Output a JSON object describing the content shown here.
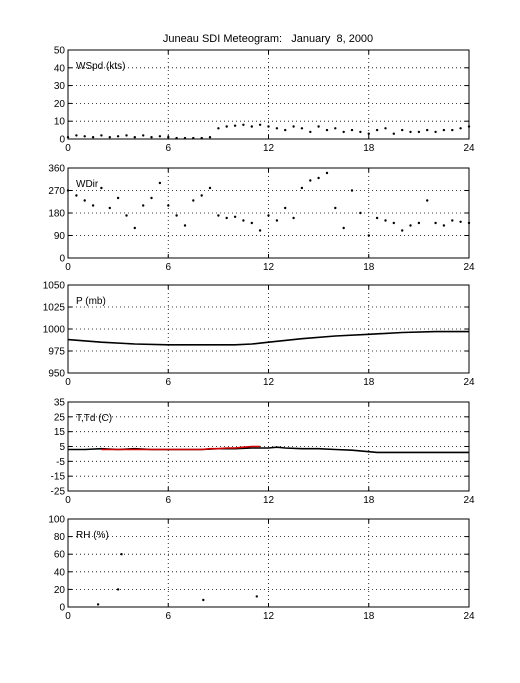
{
  "title": "Juneau SDI Meteogram:   January  8, 2000",
  "chart_data": [
    {
      "type": "scatter",
      "ylabel": "WSpd (kts)",
      "xlim": [
        0,
        24
      ],
      "ylim": [
        0,
        50
      ],
      "xticks": [
        "0",
        "6",
        "12",
        "18",
        "24"
      ],
      "yticks": [
        "0",
        "10",
        "20",
        "30",
        "40",
        "50"
      ],
      "grid": true,
      "series": [
        {
          "color": "#000000",
          "x": [
            0,
            0.5,
            1,
            1.5,
            2,
            2.5,
            3,
            3.5,
            4,
            4.5,
            5,
            5.5,
            6,
            6.5,
            7,
            7.5,
            8,
            8.5,
            9,
            9.5,
            10,
            10.5,
            11,
            11.5,
            12,
            12.5,
            13,
            13.5,
            14,
            14.5,
            15,
            15.5,
            16,
            16.5,
            17,
            17.5,
            18,
            18.5,
            19,
            19.5,
            20,
            20.5,
            21,
            21.5,
            22,
            22.5,
            23,
            23.5,
            24
          ],
          "y": [
            1,
            2,
            1.5,
            1,
            2,
            1,
            1.5,
            2,
            1,
            2,
            1,
            1.5,
            1,
            0.5,
            0.5,
            0.5,
            0.5,
            1,
            6,
            7,
            7.5,
            8,
            7,
            8,
            7,
            6,
            5,
            7,
            6,
            4,
            7,
            5,
            6,
            4,
            5,
            4,
            3,
            5,
            6,
            3,
            5,
            4,
            4,
            5,
            4,
            5,
            5,
            6,
            7
          ]
        }
      ]
    },
    {
      "type": "scatter",
      "ylabel": "WDir",
      "xlim": [
        0,
        24
      ],
      "ylim": [
        0,
        360
      ],
      "xticks": [
        "0",
        "6",
        "12",
        "18",
        "24"
      ],
      "yticks": [
        "0",
        "90",
        "180",
        "270",
        "360"
      ],
      "grid": true,
      "series": [
        {
          "color": "#000000",
          "x": [
            0,
            0.5,
            1,
            1.5,
            2,
            2.5,
            3,
            3.5,
            4,
            4.5,
            5,
            5.5,
            6,
            6.5,
            7,
            7.5,
            8,
            8.5,
            9,
            9.5,
            10,
            10.5,
            11,
            11.5,
            12,
            12.5,
            13,
            13.5,
            14,
            14.5,
            15,
            15.5,
            16,
            16.5,
            17,
            17.5,
            18,
            18.5,
            19,
            19.5,
            20,
            20.5,
            21,
            21.5,
            22,
            22.5,
            23,
            23.5,
            24
          ],
          "y": [
            270,
            250,
            230,
            210,
            280,
            200,
            240,
            170,
            120,
            210,
            240,
            300,
            210,
            170,
            130,
            230,
            250,
            280,
            170,
            160,
            165,
            150,
            140,
            110,
            170,
            150,
            200,
            160,
            280,
            310,
            320,
            340,
            200,
            120,
            270,
            180,
            90,
            160,
            150,
            140,
            110,
            130,
            140,
            230,
            140,
            130,
            150,
            145,
            140
          ]
        }
      ]
    },
    {
      "type": "line",
      "ylabel": "P (mb)",
      "xlim": [
        0,
        24
      ],
      "ylim": [
        950,
        1050
      ],
      "xticks": [
        "0",
        "6",
        "12",
        "18",
        "24"
      ],
      "yticks": [
        "950",
        "975",
        "1000",
        "1025",
        "1050"
      ],
      "grid": true,
      "series": [
        {
          "color": "#000000",
          "x": [
            0,
            2,
            4,
            6,
            8,
            10,
            11,
            12,
            14,
            16,
            18,
            20,
            22,
            24
          ],
          "y": [
            988,
            985,
            983,
            982,
            982,
            982,
            983,
            985,
            989,
            992,
            994,
            996,
            997,
            997
          ]
        }
      ]
    },
    {
      "type": "line",
      "ylabel": "T,Td (C)",
      "xlim": [
        0,
        24
      ],
      "ylim": [
        -25,
        35
      ],
      "xticks": [
        "0",
        "6",
        "12",
        "18",
        "24"
      ],
      "yticks": [
        "-25",
        "-15",
        "-5",
        "5",
        "15",
        "25",
        "35"
      ],
      "grid": true,
      "series": [
        {
          "color": "#000000",
          "x": [
            0,
            1,
            2,
            3,
            4,
            5,
            6,
            7,
            8,
            9,
            10,
            11,
            12,
            12.5,
            13,
            14,
            15,
            16,
            17,
            18,
            18.5,
            19,
            20,
            21,
            22,
            23,
            24
          ],
          "y": [
            3,
            3,
            3.5,
            3,
            3.5,
            3,
            3,
            3,
            3,
            3.5,
            3.5,
            4,
            4,
            4.5,
            4,
            3.5,
            3.5,
            3,
            2.5,
            1.5,
            1,
            1,
            1,
            1,
            1,
            1,
            1
          ]
        },
        {
          "color": "#d00000",
          "x": [
            2,
            8,
            8.5,
            9,
            9.5,
            10,
            10.5,
            11,
            11.5
          ],
          "y": [
            3,
            3,
            3.5,
            3.5,
            4,
            4,
            4.5,
            5,
            5
          ]
        }
      ]
    },
    {
      "type": "scatter",
      "ylabel": "RH (%)",
      "xlim": [
        0,
        24
      ],
      "ylim": [
        0,
        100
      ],
      "xticks": [
        "0",
        "6",
        "12",
        "18",
        "24"
      ],
      "yticks": [
        "0",
        "20",
        "40",
        "60",
        "80",
        "100"
      ],
      "grid": true,
      "series": [
        {
          "color": "#000000",
          "x": [
            1.8,
            3.2,
            8.1,
            11.3,
            3.0
          ],
          "y": [
            3,
            60,
            8,
            12,
            20
          ]
        }
      ]
    }
  ]
}
